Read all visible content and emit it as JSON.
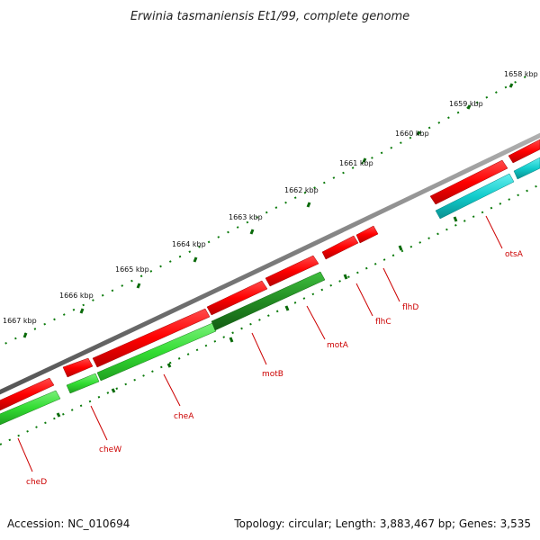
{
  "title": "Erwinia tasmaniensis Et1/99, complete genome",
  "footer": {
    "accession": "Accession: NC_010694",
    "summary": "Topology: circular; Length: 3,883,467 bp; Genes: 3,535"
  },
  "ticks": [
    "1658 kbp",
    "1659 kbp",
    "1660 kbp",
    "1661 kbp",
    "1662 kbp",
    "1663 kbp",
    "1664 kbp",
    "1665 kbp",
    "1666 kbp",
    "1667 kbp"
  ],
  "genes": [
    "otsA",
    "flhD",
    "flhC",
    "motA",
    "motB",
    "cheA",
    "cheW",
    "cheD"
  ],
  "colors": {
    "backbone": "#808080",
    "forward_gene": "#ff0000",
    "reverse_gene": "#22aa22",
    "reverse_gene_light": "#44dd44",
    "rna_like": "#11cccc",
    "tick": "#006600",
    "label": "#cc0000"
  }
}
